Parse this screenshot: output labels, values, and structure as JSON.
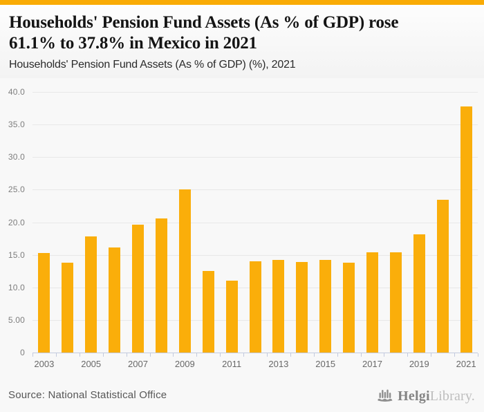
{
  "accent_color": "#F9AB05",
  "header": {
    "title_line1": "Households' Pension Fund Assets (As % of GDP) rose",
    "title_line2": "61.1% to 37.8% in Mexico in 2021",
    "subtitle": "Households' Pension Fund Assets (As % of GDP) (%), 2021"
  },
  "chart_data": {
    "type": "bar",
    "title": "Households' Pension Fund Assets (As % of GDP) (%), 2021",
    "categories": [
      "2003",
      "2004",
      "2005",
      "2006",
      "2007",
      "2008",
      "2009",
      "2010",
      "2011",
      "2012",
      "2013",
      "2014",
      "2015",
      "2016",
      "2017",
      "2018",
      "2019",
      "2020",
      "2021"
    ],
    "values": [
      15.3,
      13.8,
      17.8,
      16.1,
      19.6,
      20.6,
      25.0,
      12.5,
      11.0,
      14.0,
      14.2,
      13.9,
      14.2,
      13.8,
      15.4,
      15.4,
      18.2,
      23.5,
      37.8
    ],
    "bar_color": "#FAAE0A",
    "xlabel": "",
    "ylabel": "",
    "ylim": [
      0,
      40
    ],
    "y_ticks": [
      {
        "value": 0,
        "label": "0"
      },
      {
        "value": 5,
        "label": "5.00"
      },
      {
        "value": 10,
        "label": "10.0"
      },
      {
        "value": 15,
        "label": "15.0"
      },
      {
        "value": 20,
        "label": "20.0"
      },
      {
        "value": 25,
        "label": "25.0"
      },
      {
        "value": 30,
        "label": "30.0"
      },
      {
        "value": 35,
        "label": "35.0"
      },
      {
        "value": 40,
        "label": "40.0"
      }
    ],
    "x_tick_labels": [
      "2003",
      "2005",
      "2007",
      "2009",
      "2011",
      "2013",
      "2015",
      "2017",
      "2019",
      "2021"
    ],
    "grid": "horizontal",
    "legend": "none"
  },
  "footer": {
    "source": "Source: National Statistical Office",
    "logo": {
      "icon": "helgi-bars-icon",
      "text_primary": "Helgi",
      "text_secondary": "Library",
      "suffix": "."
    }
  }
}
